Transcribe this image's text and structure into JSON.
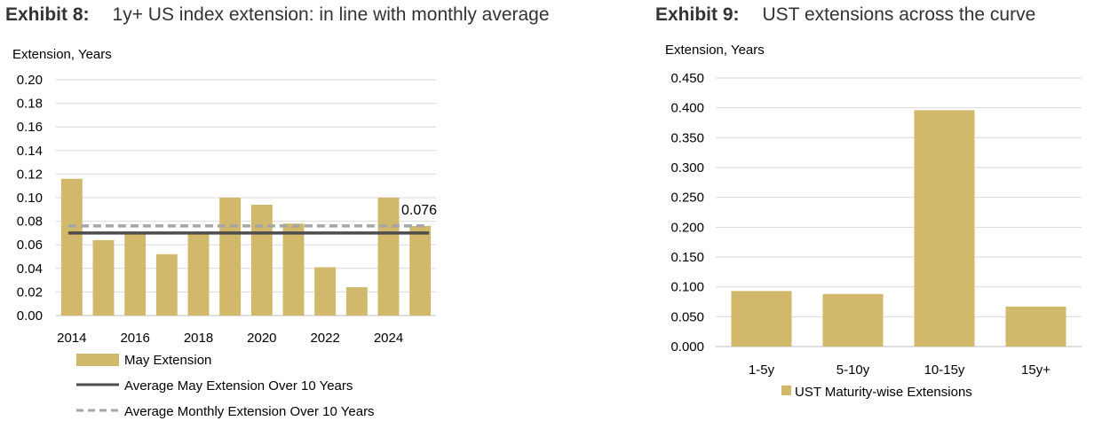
{
  "exhibits": [
    {
      "label": "Exhibit 8:",
      "subtitle": "1y+ US index extension: in line with monthly average"
    },
    {
      "label": "Exhibit 9:",
      "subtitle": "UST extensions across the curve"
    }
  ],
  "colors": {
    "bar": "#D1B86A",
    "avg_may": "#4D4D4D",
    "avg_monthly": "#A6A6A6",
    "grid": "#D9D9D9",
    "axis": "#BFBFBF"
  },
  "chart_data": [
    {
      "type": "bar",
      "title": "1y+ US index extension: in line with monthly average",
      "ylabel": "Extension, Years",
      "ylim": [
        0,
        0.2
      ],
      "yticks": [
        "0.00",
        "0.02",
        "0.04",
        "0.06",
        "0.08",
        "0.10",
        "0.12",
        "0.14",
        "0.16",
        "0.18",
        "0.20"
      ],
      "categories": [
        "2014",
        "2015",
        "2016",
        "2017",
        "2018",
        "2019",
        "2020",
        "2021",
        "2022",
        "2023",
        "2024",
        "2025"
      ],
      "xtick_labels": [
        "2014",
        "2016",
        "2018",
        "2020",
        "2022",
        "2024"
      ],
      "series": [
        {
          "name": "May Extension",
          "type": "bar",
          "values": [
            0.116,
            0.064,
            0.07,
            0.052,
            0.07,
            0.1,
            0.094,
            0.078,
            0.041,
            0.024,
            0.1,
            0.076
          ]
        },
        {
          "name": "Average May Extension Over 10 Years",
          "type": "line",
          "value": 0.07
        },
        {
          "name": "Average Monthly Extension Over 10 Years",
          "type": "dashed-line",
          "value": 0.076
        }
      ],
      "annotation": "0.076",
      "grid": true,
      "legend_placement": "bottom"
    },
    {
      "type": "bar",
      "title": "UST extensions across the curve",
      "ylabel": "Extension, Years",
      "ylim": [
        0,
        0.45
      ],
      "yticks": [
        "0.000",
        "0.050",
        "0.100",
        "0.150",
        "0.200",
        "0.250",
        "0.300",
        "0.350",
        "0.400",
        "0.450"
      ],
      "categories": [
        "1-5y",
        "5-10y",
        "10-15y",
        "15y+"
      ],
      "series": [
        {
          "name": "UST Maturity-wise Extensions",
          "values": [
            0.093,
            0.088,
            0.396,
            0.067
          ]
        }
      ],
      "grid": true,
      "legend_placement": "bottom"
    }
  ]
}
